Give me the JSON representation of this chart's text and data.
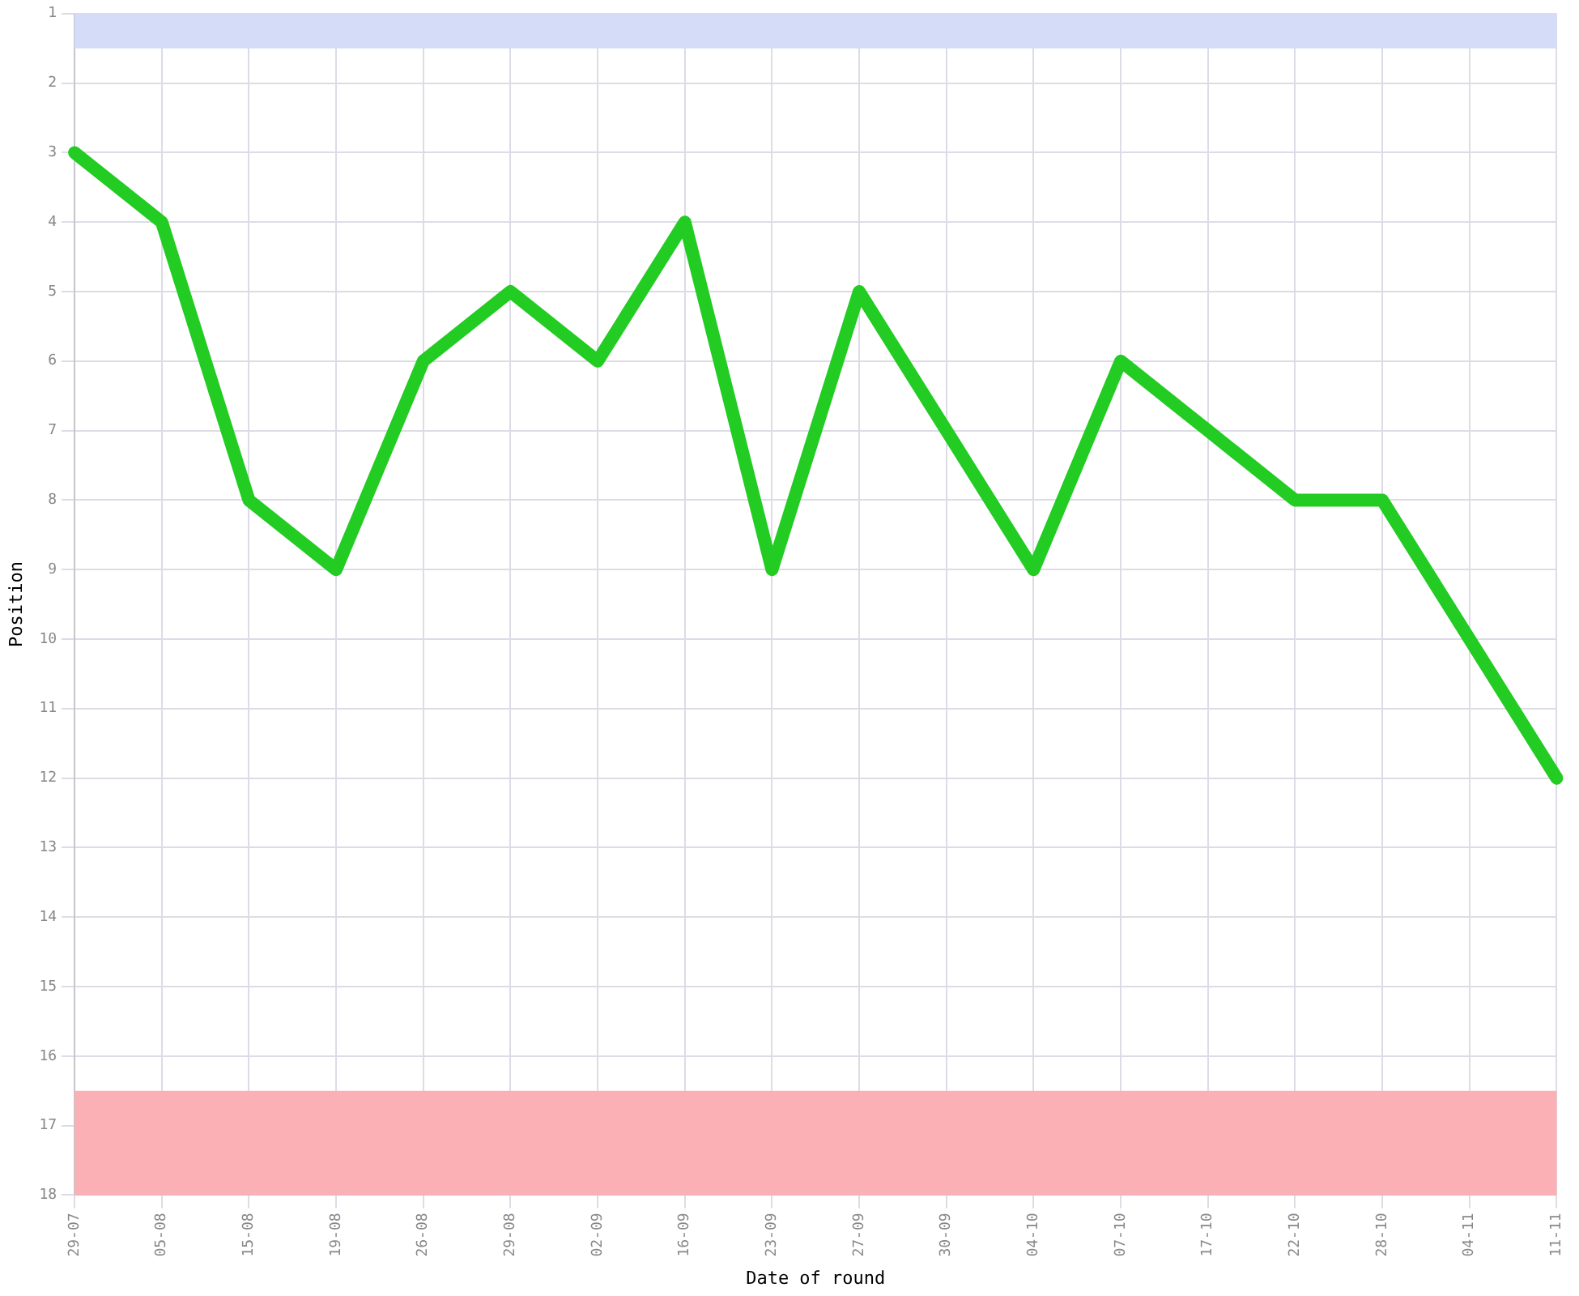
{
  "chart_data": {
    "type": "line",
    "xlabel": "Date of round",
    "ylabel": "Position",
    "categories": [
      "29-07",
      "05-08",
      "15-08",
      "19-08",
      "26-08",
      "29-08",
      "02-09",
      "16-09",
      "23-09",
      "27-09",
      "30-09",
      "04-10",
      "07-10",
      "17-10",
      "22-10",
      "28-10",
      "04-11",
      "11-11"
    ],
    "series": [
      {
        "color": "#22cc22",
        "values": [
          3,
          4,
          8,
          9,
          6,
          5,
          6,
          4,
          9,
          5,
          7,
          9,
          6,
          7,
          8,
          8,
          10,
          12
        ]
      }
    ],
    "ylim": [
      18,
      1
    ],
    "yticks": [
      1,
      2,
      3,
      4,
      5,
      6,
      7,
      8,
      9,
      10,
      11,
      12,
      13,
      14,
      15,
      16,
      17,
      18
    ],
    "bands": [
      {
        "axis": "y",
        "from": 1,
        "to": 1.5,
        "color": "#d5dcf7"
      },
      {
        "axis": "y",
        "from": 16.5,
        "to": 18,
        "color": "#fbb0b6"
      }
    ],
    "grid": true,
    "legend": false,
    "marker": "none",
    "line_style": "solid"
  }
}
